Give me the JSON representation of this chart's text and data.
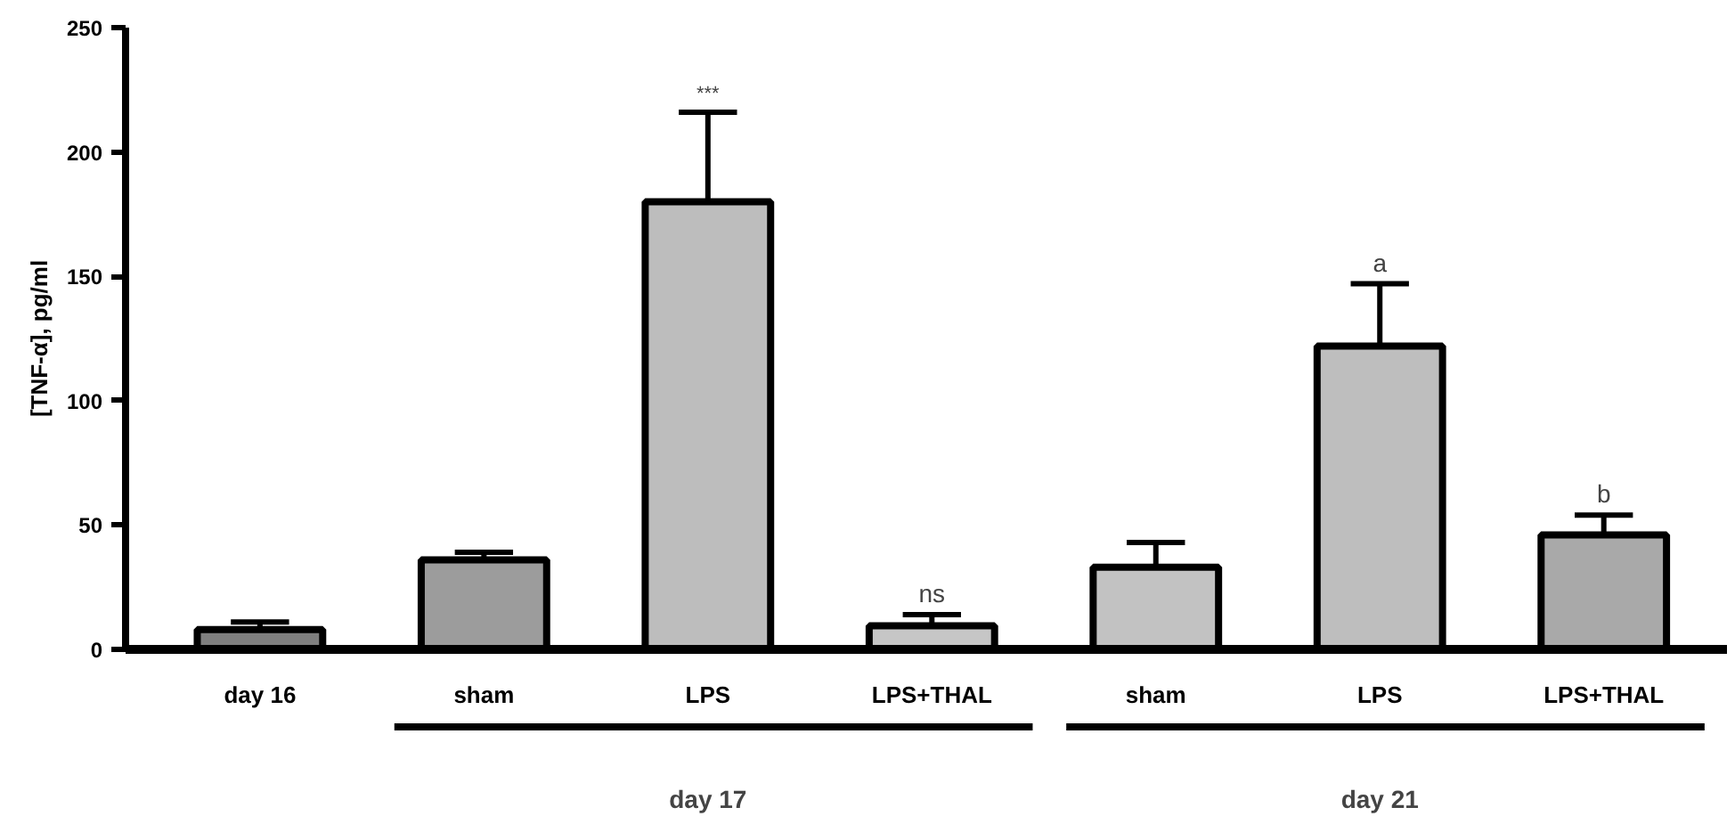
{
  "chart_data": {
    "type": "bar",
    "ylabel": "[TNF-α], pg/ml",
    "categories": [
      "day 16",
      "sham",
      "LPS",
      "LPS+THAL",
      "sham",
      "LPS",
      "LPS+THAL"
    ],
    "values": [
      8,
      36,
      180,
      9.5,
      33,
      122,
      46
    ],
    "errors": [
      [
        8,
        11
      ],
      [
        36,
        39
      ],
      [
        180,
        216
      ],
      [
        9.5,
        14
      ],
      [
        33,
        43
      ],
      [
        122,
        147
      ],
      [
        46,
        54
      ]
    ],
    "colors": [
      "#7f7f7f",
      "#9c9c9c",
      "#bdbdbd",
      "#c6c6c6",
      "#c2c2c2",
      "#bebebe",
      "#a9a9a9"
    ],
    "ylim": [
      0,
      250
    ],
    "yticks": [
      0,
      50,
      100,
      150,
      200,
      250
    ],
    "grid": false,
    "annotations": [
      "***",
      "ns",
      "a",
      "b",
      "day 17",
      "day 21"
    ]
  }
}
